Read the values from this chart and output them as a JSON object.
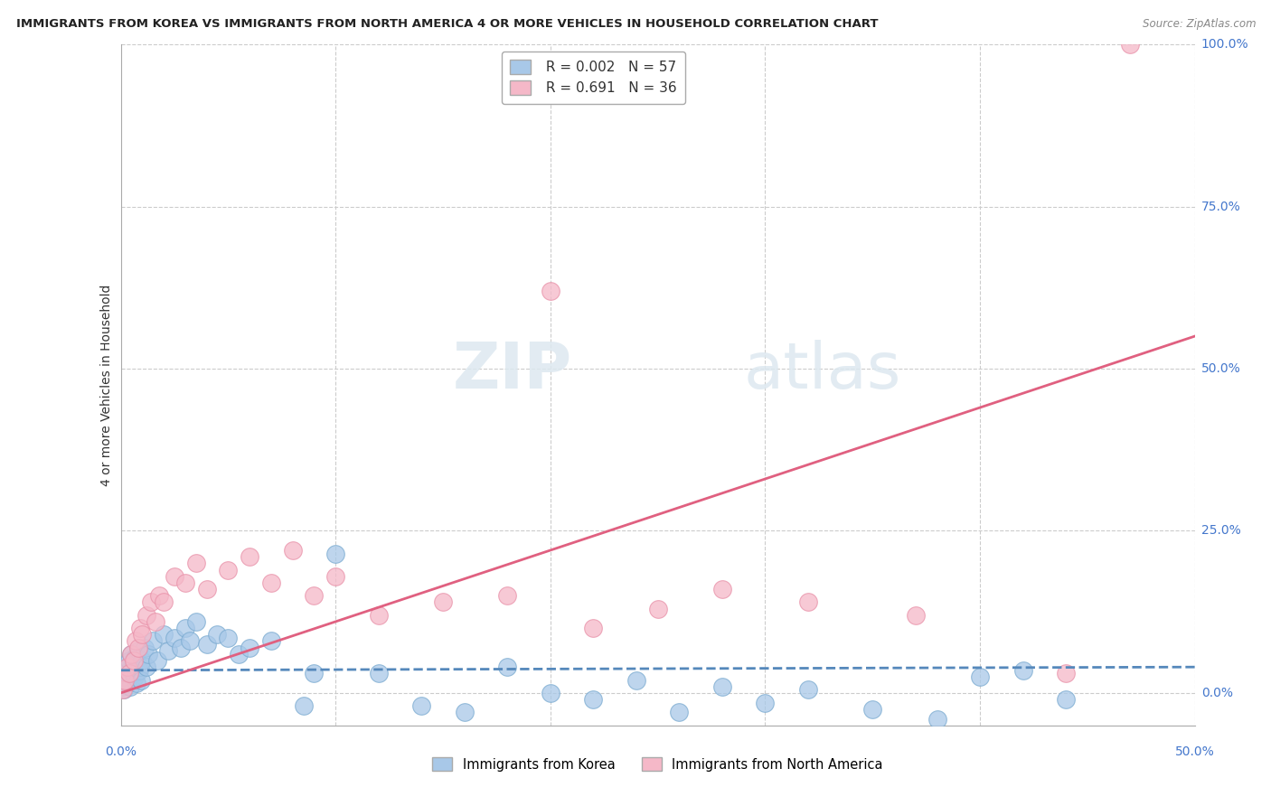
{
  "title": "IMMIGRANTS FROM KOREA VS IMMIGRANTS FROM NORTH AMERICA 4 OR MORE VEHICLES IN HOUSEHOLD CORRELATION CHART",
  "source": "Source: ZipAtlas.com",
  "ylabel": "4 or more Vehicles in Household",
  "korea_color": "#a8c8e8",
  "korea_edge": "#7aaad0",
  "northam_color": "#f5b8c8",
  "northam_edge": "#e890a8",
  "korea_line_color": "#5588bb",
  "northam_line_color": "#e06080",
  "watermark_zip": "ZIP",
  "watermark_atlas": "atlas",
  "xlim": [
    0.0,
    50.0
  ],
  "ylim": [
    -5.0,
    100.0
  ],
  "korea_R": "0.002",
  "korea_N": "57",
  "northam_R": "0.691",
  "northam_N": "36",
  "korea_x": [
    0.05,
    0.1,
    0.15,
    0.2,
    0.25,
    0.3,
    0.35,
    0.4,
    0.45,
    0.5,
    0.55,
    0.6,
    0.65,
    0.7,
    0.75,
    0.8,
    0.85,
    0.9,
    0.95,
    1.0,
    1.1,
    1.2,
    1.3,
    1.5,
    1.7,
    2.0,
    2.2,
    2.5,
    2.8,
    3.0,
    3.2,
    3.5,
    4.0,
    4.5,
    5.0,
    5.5,
    6.0,
    7.0,
    8.5,
    9.0,
    10.0,
    12.0,
    14.0,
    16.0,
    18.0,
    20.0,
    22.0,
    24.0,
    26.0,
    28.0,
    30.0,
    32.0,
    35.0,
    38.0,
    40.0,
    42.0,
    44.0
  ],
  "korea_y": [
    1.0,
    2.5,
    0.5,
    3.0,
    1.5,
    4.0,
    2.0,
    5.0,
    1.0,
    6.0,
    3.0,
    4.5,
    2.5,
    5.5,
    1.5,
    6.5,
    3.5,
    4.0,
    2.0,
    5.0,
    7.0,
    4.0,
    6.0,
    8.0,
    5.0,
    9.0,
    6.5,
    8.5,
    7.0,
    10.0,
    8.0,
    11.0,
    7.5,
    9.0,
    8.5,
    6.0,
    7.0,
    8.0,
    -2.0,
    3.0,
    21.5,
    3.0,
    -2.0,
    -3.0,
    4.0,
    0.0,
    -1.0,
    2.0,
    -3.0,
    1.0,
    -1.5,
    0.5,
    -2.5,
    -4.0,
    2.5,
    3.5,
    -1.0
  ],
  "northam_x": [
    0.1,
    0.2,
    0.3,
    0.4,
    0.5,
    0.6,
    0.7,
    0.8,
    0.9,
    1.0,
    1.2,
    1.4,
    1.6,
    1.8,
    2.0,
    2.5,
    3.0,
    3.5,
    4.0,
    5.0,
    6.0,
    7.0,
    8.0,
    9.0,
    10.0,
    12.0,
    15.0,
    18.0,
    20.0,
    22.0,
    25.0,
    28.0,
    32.0,
    37.0,
    44.0,
    47.0
  ],
  "northam_y": [
    0.5,
    2.0,
    4.0,
    3.0,
    6.0,
    5.0,
    8.0,
    7.0,
    10.0,
    9.0,
    12.0,
    14.0,
    11.0,
    15.0,
    14.0,
    18.0,
    17.0,
    20.0,
    16.0,
    19.0,
    21.0,
    17.0,
    22.0,
    15.0,
    18.0,
    12.0,
    14.0,
    15.0,
    62.0,
    10.0,
    13.0,
    16.0,
    14.0,
    12.0,
    3.0,
    100.0
  ],
  "korea_line_slope": 0.01,
  "korea_line_intercept": 3.5,
  "northam_line_x0": 0.0,
  "northam_line_y0": 0.0,
  "northam_line_x1": 50.0,
  "northam_line_y1": 55.0
}
